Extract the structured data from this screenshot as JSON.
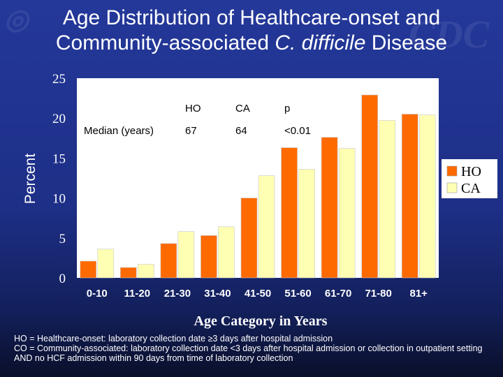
{
  "title": {
    "line1": "Age Distribution of Healthcare-onset and",
    "line2_prefix": "Community-associated ",
    "line2_italic": "C. difficile",
    "line2_suffix": " Disease"
  },
  "chart_data": {
    "type": "bar",
    "categories": [
      "0-10",
      "11-20",
      "21-30",
      "31-40",
      "41-50",
      "51-60",
      "61-70",
      "71-80",
      "81+"
    ],
    "series": [
      {
        "name": "HO",
        "values": [
          2.1,
          1.3,
          4.3,
          5.3,
          10.0,
          16.3,
          17.6,
          22.9,
          20.5
        ],
        "color": "#ff6a00"
      },
      {
        "name": "CA",
        "values": [
          3.6,
          1.7,
          5.8,
          6.4,
          12.8,
          13.6,
          16.2,
          19.7,
          20.4
        ],
        "color": "#ffffb3"
      }
    ],
    "xlabel": "Age Category in Years",
    "ylabel": "Percent",
    "ylim": [
      0,
      25
    ],
    "yticks": [
      0,
      5,
      10,
      15,
      20,
      25
    ],
    "grid": false,
    "legend_position": "right",
    "plot_background": "#ffffff",
    "inset_table": {
      "header": [
        "",
        "HO",
        "CA",
        "p"
      ],
      "row": [
        "Median (years)",
        "67",
        "64",
        "<0.01"
      ]
    }
  },
  "footnote": {
    "line1": "HO = Healthcare-onset:  laboratory collection date ≥3 days after hospital admission",
    "line2": "CO = Community-associated:  laboratory collection date <3 days after hospital admission or collection  in outpatient setting AND no HCF admission within 90 days from time of laboratory collection"
  }
}
